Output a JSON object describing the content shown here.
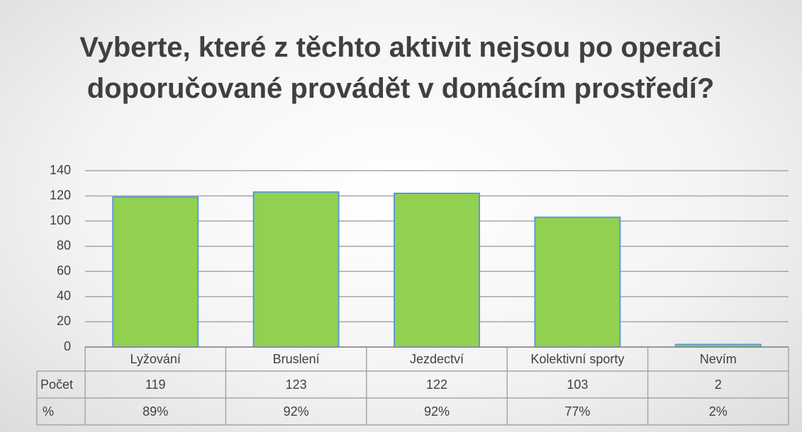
{
  "chart_data": {
    "type": "bar",
    "title": "Vyberte, které z těchto aktivit nejsou po operaci doporučované provádět v domácím prostředí?",
    "categories": [
      "Lyžování",
      "Bruslení",
      "Jezdectví",
      "Kolektivní sporty",
      "Nevím"
    ],
    "series": [
      {
        "name": "Počet",
        "color": "#92d050",
        "values": [
          119,
          123,
          122,
          103,
          2
        ]
      }
    ],
    "table_rows": [
      {
        "name": "%",
        "values": [
          "89%",
          "92%",
          "92%",
          "77%",
          "2%"
        ]
      }
    ],
    "ylim": [
      0,
      140
    ],
    "yticks": [
      0,
      20,
      40,
      60,
      80,
      100,
      120,
      140
    ],
    "grid": true
  }
}
